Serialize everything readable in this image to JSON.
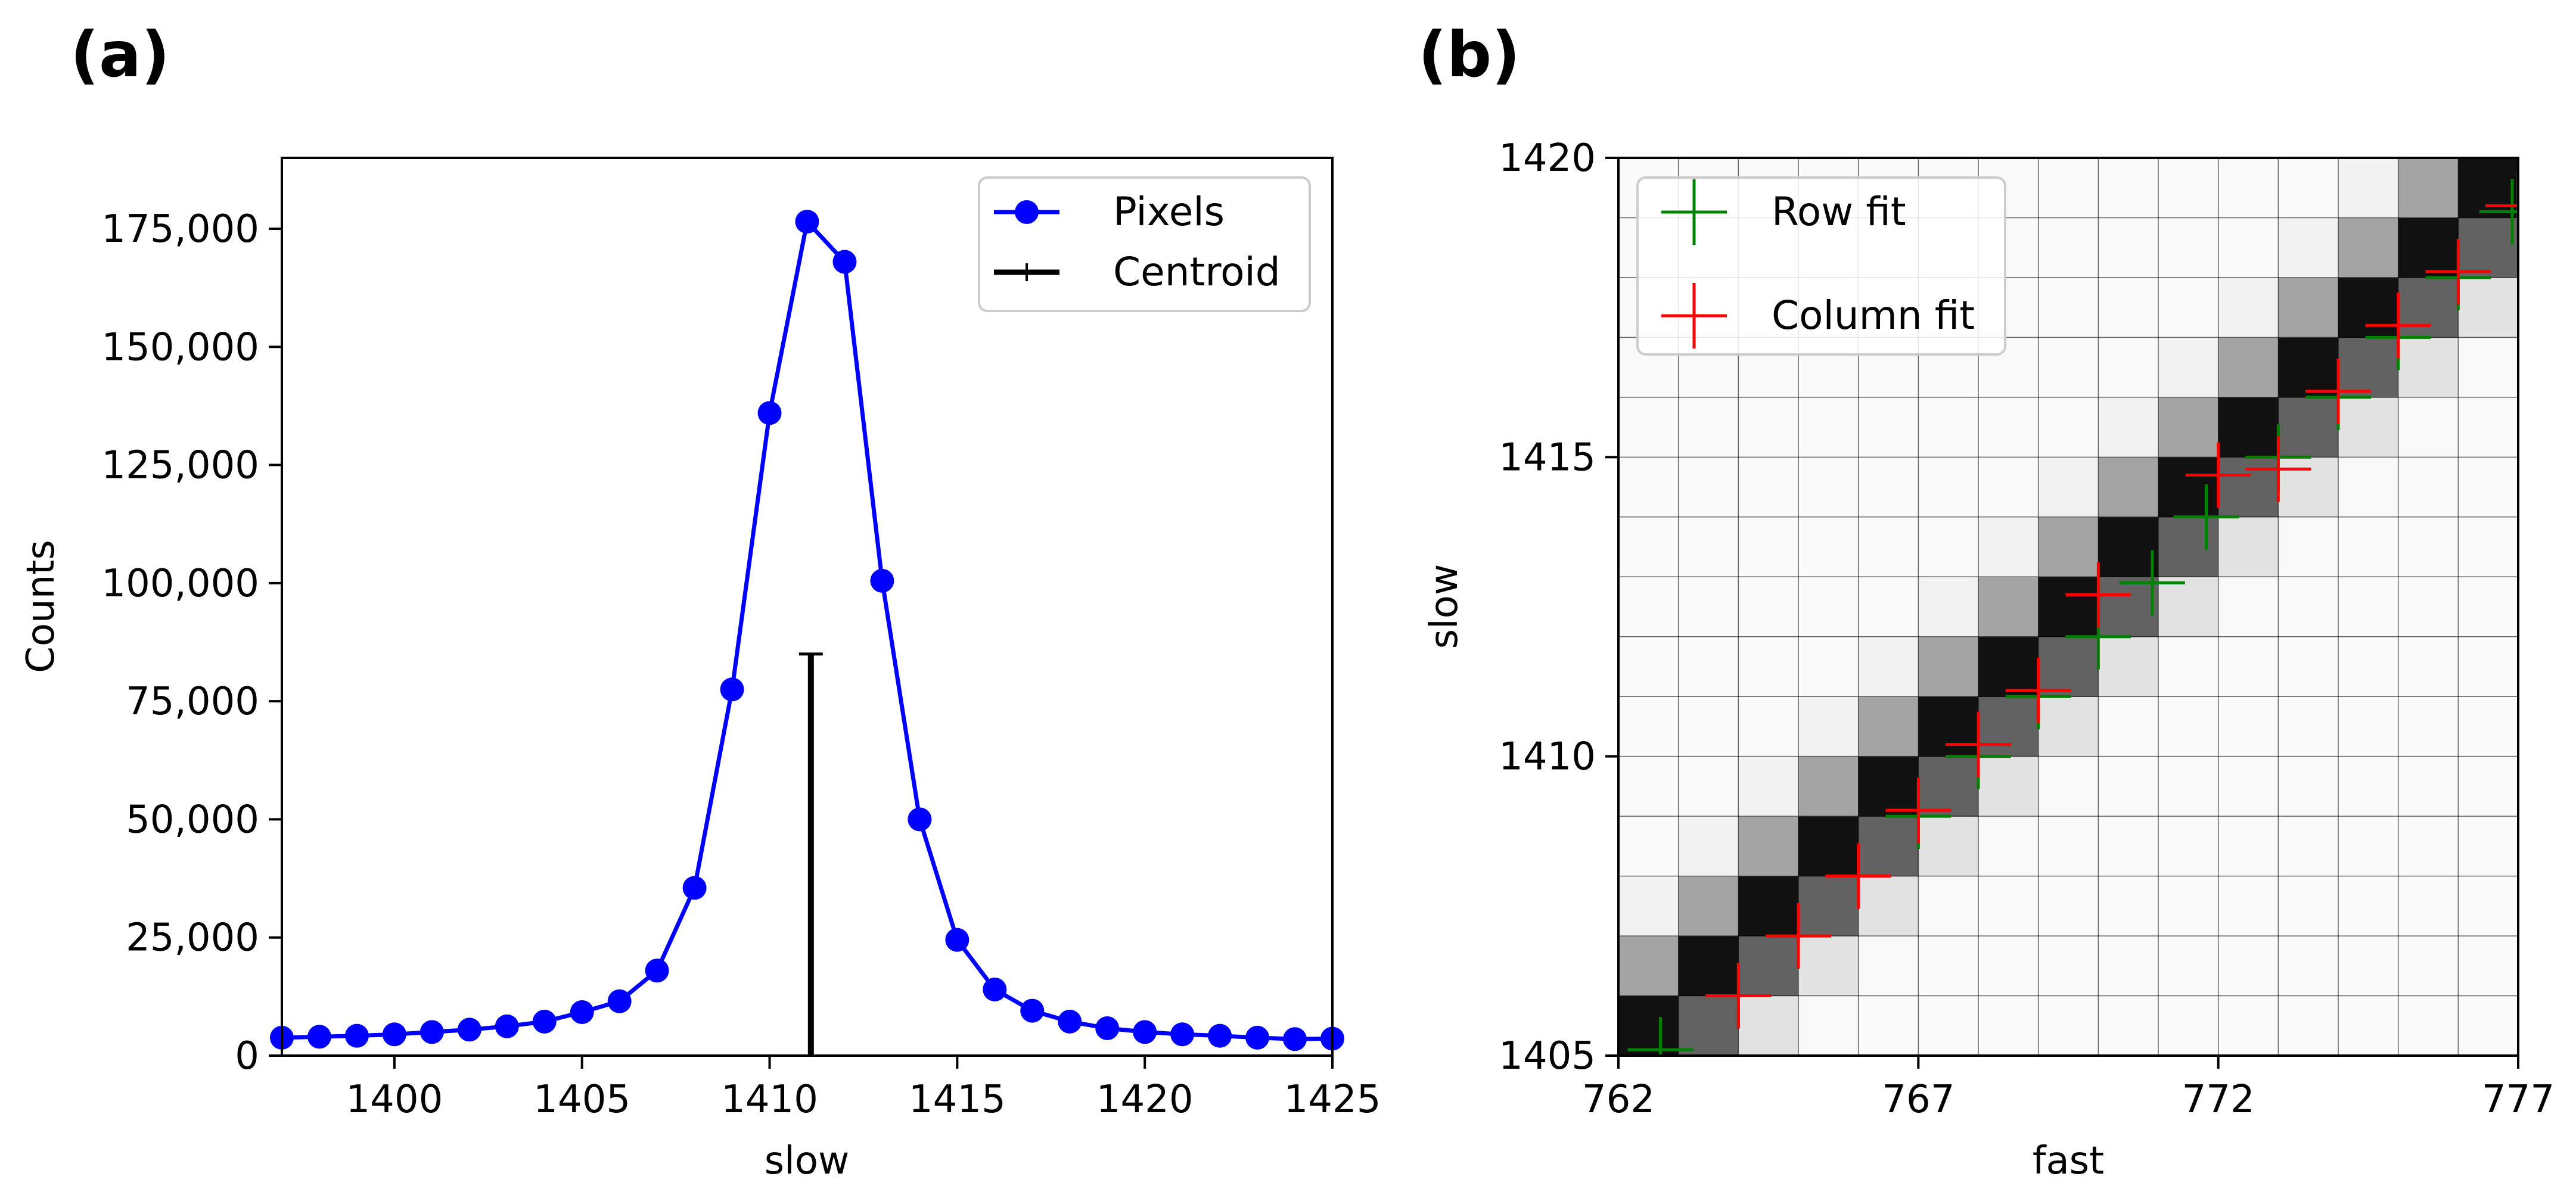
{
  "chart_data": [
    {
      "panel": "(a)",
      "type": "line",
      "xlabel": "slow",
      "ylabel": "Counts",
      "xlim": [
        1397,
        1425
      ],
      "ylim": [
        0,
        190000
      ],
      "xticks": [
        1400,
        1405,
        1410,
        1415,
        1420,
        1425
      ],
      "xtick_labels": [
        "1400",
        "1405",
        "1410",
        "1415",
        "1420",
        "1425"
      ],
      "yticks": [
        0,
        25000,
        50000,
        75000,
        100000,
        125000,
        150000,
        175000
      ],
      "ytick_labels": [
        "0",
        "25,000",
        "50,000",
        "75,000",
        "100,000",
        "125,000",
        "150,000",
        "175,000"
      ],
      "legend_position": "top-right",
      "series": [
        {
          "name": "Pixels",
          "color": "#0000ff",
          "marker": "circle",
          "x": [
            1397,
            1398,
            1399,
            1400,
            1401,
            1402,
            1403,
            1404,
            1405,
            1406,
            1407,
            1408,
            1409,
            1410,
            1411,
            1412,
            1413,
            1414,
            1415,
            1416,
            1417,
            1418,
            1419,
            1420,
            1421,
            1422,
            1423,
            1424,
            1425
          ],
          "y": [
            3800,
            4000,
            4200,
            4500,
            5000,
            5500,
            6200,
            7200,
            9200,
            11500,
            18000,
            35500,
            77500,
            136000,
            176500,
            168000,
            100500,
            50000,
            24500,
            14000,
            9500,
            7200,
            5800,
            5000,
            4500,
            4200,
            3800,
            3500,
            3600
          ]
        },
        {
          "name": "Centroid",
          "color": "#000000",
          "marker": "vertical-line",
          "x": 1411.1,
          "y": 85000
        }
      ]
    },
    {
      "panel": "(b)",
      "type": "heatmap",
      "xlabel": "fast",
      "ylabel": "slow",
      "xlim": [
        762,
        777
      ],
      "ylim": [
        1405,
        1420
      ],
      "xticks": [
        762,
        767,
        772,
        777
      ],
      "xtick_labels": [
        "762",
        "767",
        "772",
        "777"
      ],
      "yticks": [
        1405,
        1410,
        1415,
        1420
      ],
      "ytick_labels": [
        "1405",
        "1410",
        "1415",
        "1420"
      ],
      "grid": true,
      "colormap": "gray_r",
      "legend_position": "top-left",
      "series": [
        {
          "name": "Row fit",
          "color": "#008000",
          "marker": "plus",
          "x": [
            762.7,
            764.0,
            765.0,
            766.0,
            767.0,
            768.0,
            769.0,
            770.0,
            770.9,
            771.8,
            773.0,
            774.0,
            775.0,
            776.0,
            776.9
          ],
          "y": [
            1405.1,
            1406.0,
            1407.0,
            1408.0,
            1409.0,
            1410.0,
            1411.0,
            1412.0,
            1412.9,
            1414.0,
            1415.0,
            1416.0,
            1417.0,
            1418.0,
            1419.1
          ]
        },
        {
          "name": "Column fit",
          "color": "#ff0000",
          "marker": "plus",
          "x": [
            764.0,
            765.0,
            766.0,
            767.0,
            768.0,
            769.0,
            770.0,
            772.0,
            773.0,
            774.0,
            775.0,
            776.0,
            777.0
          ],
          "y": [
            1406.0,
            1407.0,
            1408.0,
            1409.1,
            1410.2,
            1411.1,
            1412.7,
            1414.7,
            1414.8,
            1416.1,
            1417.2,
            1418.1,
            1419.2
          ]
        }
      ]
    }
  ]
}
